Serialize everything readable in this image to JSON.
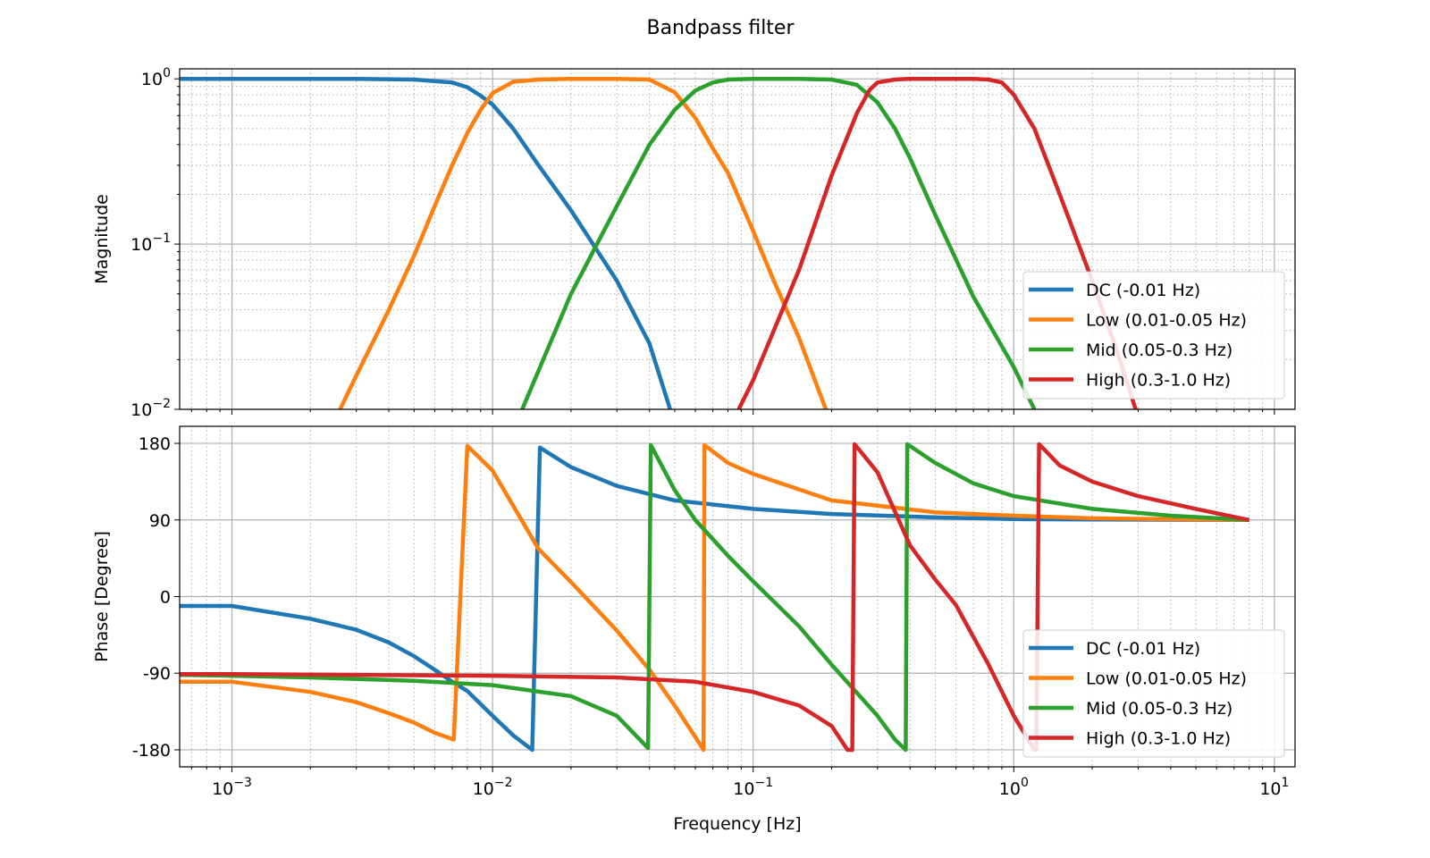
{
  "title": "Bandpass filter",
  "colors": {
    "DC": "#1f77b4",
    "Low": "#ff7f0e",
    "Mid": "#2ca02c",
    "High": "#d62728"
  },
  "chart_data": [
    {
      "type": "line",
      "panel": "magnitude",
      "ylabel": "Magnitude",
      "xscale": "log",
      "yscale": "log",
      "xlim": [
        0.00063,
        12
      ],
      "ylim": [
        0.01,
        1.15
      ],
      "xticks": [
        {
          "base": "10",
          "exp": "−3",
          "value": 0.001
        },
        {
          "base": "10",
          "exp": "−2",
          "value": 0.01
        },
        {
          "base": "10",
          "exp": "−1",
          "value": 0.1
        },
        {
          "base": "10",
          "exp": "0",
          "value": 1
        },
        {
          "base": "10",
          "exp": "1",
          "value": 10
        }
      ],
      "yticks": [
        {
          "base": "10",
          "exp": "0",
          "value": 1
        },
        {
          "base": "10",
          "exp": "−1",
          "value": 0.1
        },
        {
          "base": "10",
          "exp": "−2",
          "value": 0.01
        }
      ],
      "grid": true,
      "legend": "lower right",
      "series": [
        {
          "name": "DC (-0.01 Hz)",
          "color": "#1f77b4",
          "x": [
            0.00063,
            0.001,
            0.002,
            0.003,
            0.005,
            0.007,
            0.008,
            0.009,
            0.01,
            0.012,
            0.015,
            0.02,
            0.03,
            0.04,
            0.048
          ],
          "y": [
            1,
            1,
            1,
            0.999,
            0.99,
            0.95,
            0.89,
            0.79,
            0.7,
            0.5,
            0.3,
            0.16,
            0.06,
            0.025,
            0.01
          ]
        },
        {
          "name": "Low (0.01-0.05 Hz)",
          "color": "#ff7f0e",
          "x": [
            0.0026,
            0.003,
            0.004,
            0.005,
            0.006,
            0.007,
            0.008,
            0.009,
            0.01,
            0.012,
            0.015,
            0.02,
            0.03,
            0.04,
            0.05,
            0.06,
            0.07,
            0.08,
            0.1,
            0.12,
            0.15,
            0.19
          ],
          "y": [
            0.01,
            0.016,
            0.04,
            0.085,
            0.17,
            0.3,
            0.47,
            0.65,
            0.82,
            0.96,
            0.99,
            1,
            1,
            0.99,
            0.83,
            0.58,
            0.38,
            0.27,
            0.12,
            0.06,
            0.027,
            0.01
          ]
        },
        {
          "name": "Mid (0.05-0.3 Hz)",
          "color": "#2ca02c",
          "x": [
            0.013,
            0.02,
            0.03,
            0.04,
            0.05,
            0.06,
            0.07,
            0.08,
            0.1,
            0.15,
            0.2,
            0.25,
            0.3,
            0.35,
            0.4,
            0.5,
            0.7,
            1.0,
            1.2
          ],
          "y": [
            0.01,
            0.05,
            0.17,
            0.4,
            0.65,
            0.85,
            0.95,
            0.99,
            1,
            1,
            0.99,
            0.92,
            0.72,
            0.5,
            0.33,
            0.15,
            0.048,
            0.018,
            0.01
          ]
        },
        {
          "name": "High (0.3-1.0 Hz)",
          "color": "#d62728",
          "x": [
            0.088,
            0.1,
            0.15,
            0.2,
            0.25,
            0.28,
            0.3,
            0.35,
            0.4,
            0.5,
            0.7,
            0.8,
            0.9,
            1.0,
            1.2,
            1.5,
            2,
            2.5,
            3.0
          ],
          "y": [
            0.01,
            0.015,
            0.07,
            0.26,
            0.62,
            0.86,
            0.95,
            0.99,
            1,
            1,
            1,
            0.99,
            0.95,
            0.8,
            0.5,
            0.2,
            0.06,
            0.022,
            0.009
          ]
        }
      ]
    },
    {
      "type": "line",
      "panel": "phase",
      "ylabel": "Phase [Degree]",
      "xlabel": "Frequency [Hz]",
      "xscale": "log",
      "yscale": "linear",
      "xlim": [
        0.00063,
        12
      ],
      "ylim": [
        -200,
        200
      ],
      "xticks": [
        {
          "base": "10",
          "exp": "−3",
          "value": 0.001
        },
        {
          "base": "10",
          "exp": "−2",
          "value": 0.01
        },
        {
          "base": "10",
          "exp": "−1",
          "value": 0.1
        },
        {
          "base": "10",
          "exp": "0",
          "value": 1
        },
        {
          "base": "10",
          "exp": "1",
          "value": 10
        }
      ],
      "yticks": [
        {
          "label": "180",
          "value": 180
        },
        {
          "label": "90",
          "value": 90
        },
        {
          "label": "0",
          "value": 0
        },
        {
          "label": "-90",
          "value": -90
        },
        {
          "label": "-180",
          "value": -180
        }
      ],
      "grid": true,
      "legend": "lower right",
      "series": [
        {
          "name": "DC (-0.01 Hz)",
          "color": "#1f77b4",
          "x": [
            0.00063,
            0.001,
            0.002,
            0.003,
            0.004,
            0.005,
            0.006,
            0.007,
            0.008,
            0.01,
            0.012,
            0.0142,
            0.0152,
            0.02,
            0.03,
            0.05,
            0.1,
            0.2,
            0.5,
            1,
            2,
            5,
            8
          ],
          "y": [
            -11,
            -11,
            -26,
            -39,
            -54,
            -70,
            -86,
            -100,
            -111,
            -140,
            -163,
            -180,
            175,
            152,
            130,
            113,
            103,
            97,
            93,
            91,
            90.5,
            90.2,
            90
          ]
        },
        {
          "name": "Low (0.01-0.05 Hz)",
          "color": "#ff7f0e",
          "x": [
            0.00063,
            0.001,
            0.002,
            0.003,
            0.004,
            0.005,
            0.006,
            0.0071,
            0.008,
            0.01,
            0.015,
            0.02,
            0.03,
            0.04,
            0.05,
            0.06,
            0.0645,
            0.065,
            0.08,
            0.1,
            0.2,
            0.5,
            1,
            2,
            5,
            8
          ],
          "y": [
            -100,
            -100,
            -112,
            -124,
            -137,
            -148,
            -160,
            -168,
            177,
            148,
            56,
            17,
            -40,
            -86,
            -128,
            -165,
            -180,
            178,
            157,
            144,
            113,
            99,
            95,
            92,
            90.5,
            90
          ]
        },
        {
          "name": "Mid (0.05-0.3 Hz)",
          "color": "#2ca02c",
          "x": [
            0.00063,
            0.001,
            0.002,
            0.005,
            0.01,
            0.02,
            0.03,
            0.0395,
            0.0405,
            0.05,
            0.06,
            0.08,
            0.1,
            0.15,
            0.2,
            0.3,
            0.35,
            0.385,
            0.39,
            0.5,
            0.7,
            1,
            2,
            4,
            8
          ],
          "y": [
            -92,
            -93,
            -95,
            -99,
            -104,
            -117,
            -140,
            -178,
            178,
            125,
            90,
            48,
            18,
            -35,
            -80,
            -140,
            -168,
            -180,
            179,
            157,
            133,
            118,
            103,
            95,
            90
          ]
        },
        {
          "name": "High (0.3-1.0 Hz)",
          "color": "#d62728",
          "x": [
            0.00063,
            0.001,
            0.01,
            0.03,
            0.06,
            0.1,
            0.15,
            0.2,
            0.23,
            0.24,
            0.245,
            0.3,
            0.4,
            0.5,
            0.6,
            0.8,
            1.0,
            1.2,
            1.22,
            1.25,
            1.5,
            2,
            3,
            5,
            8
          ],
          "y": [
            -91,
            -91,
            -93,
            -95,
            -100,
            -112,
            -128,
            -152,
            -180,
            -180,
            179,
            146,
            60,
            20,
            -10,
            -80,
            -140,
            -180,
            -180,
            179,
            154,
            135,
            118,
            103,
            90
          ]
        }
      ]
    }
  ]
}
